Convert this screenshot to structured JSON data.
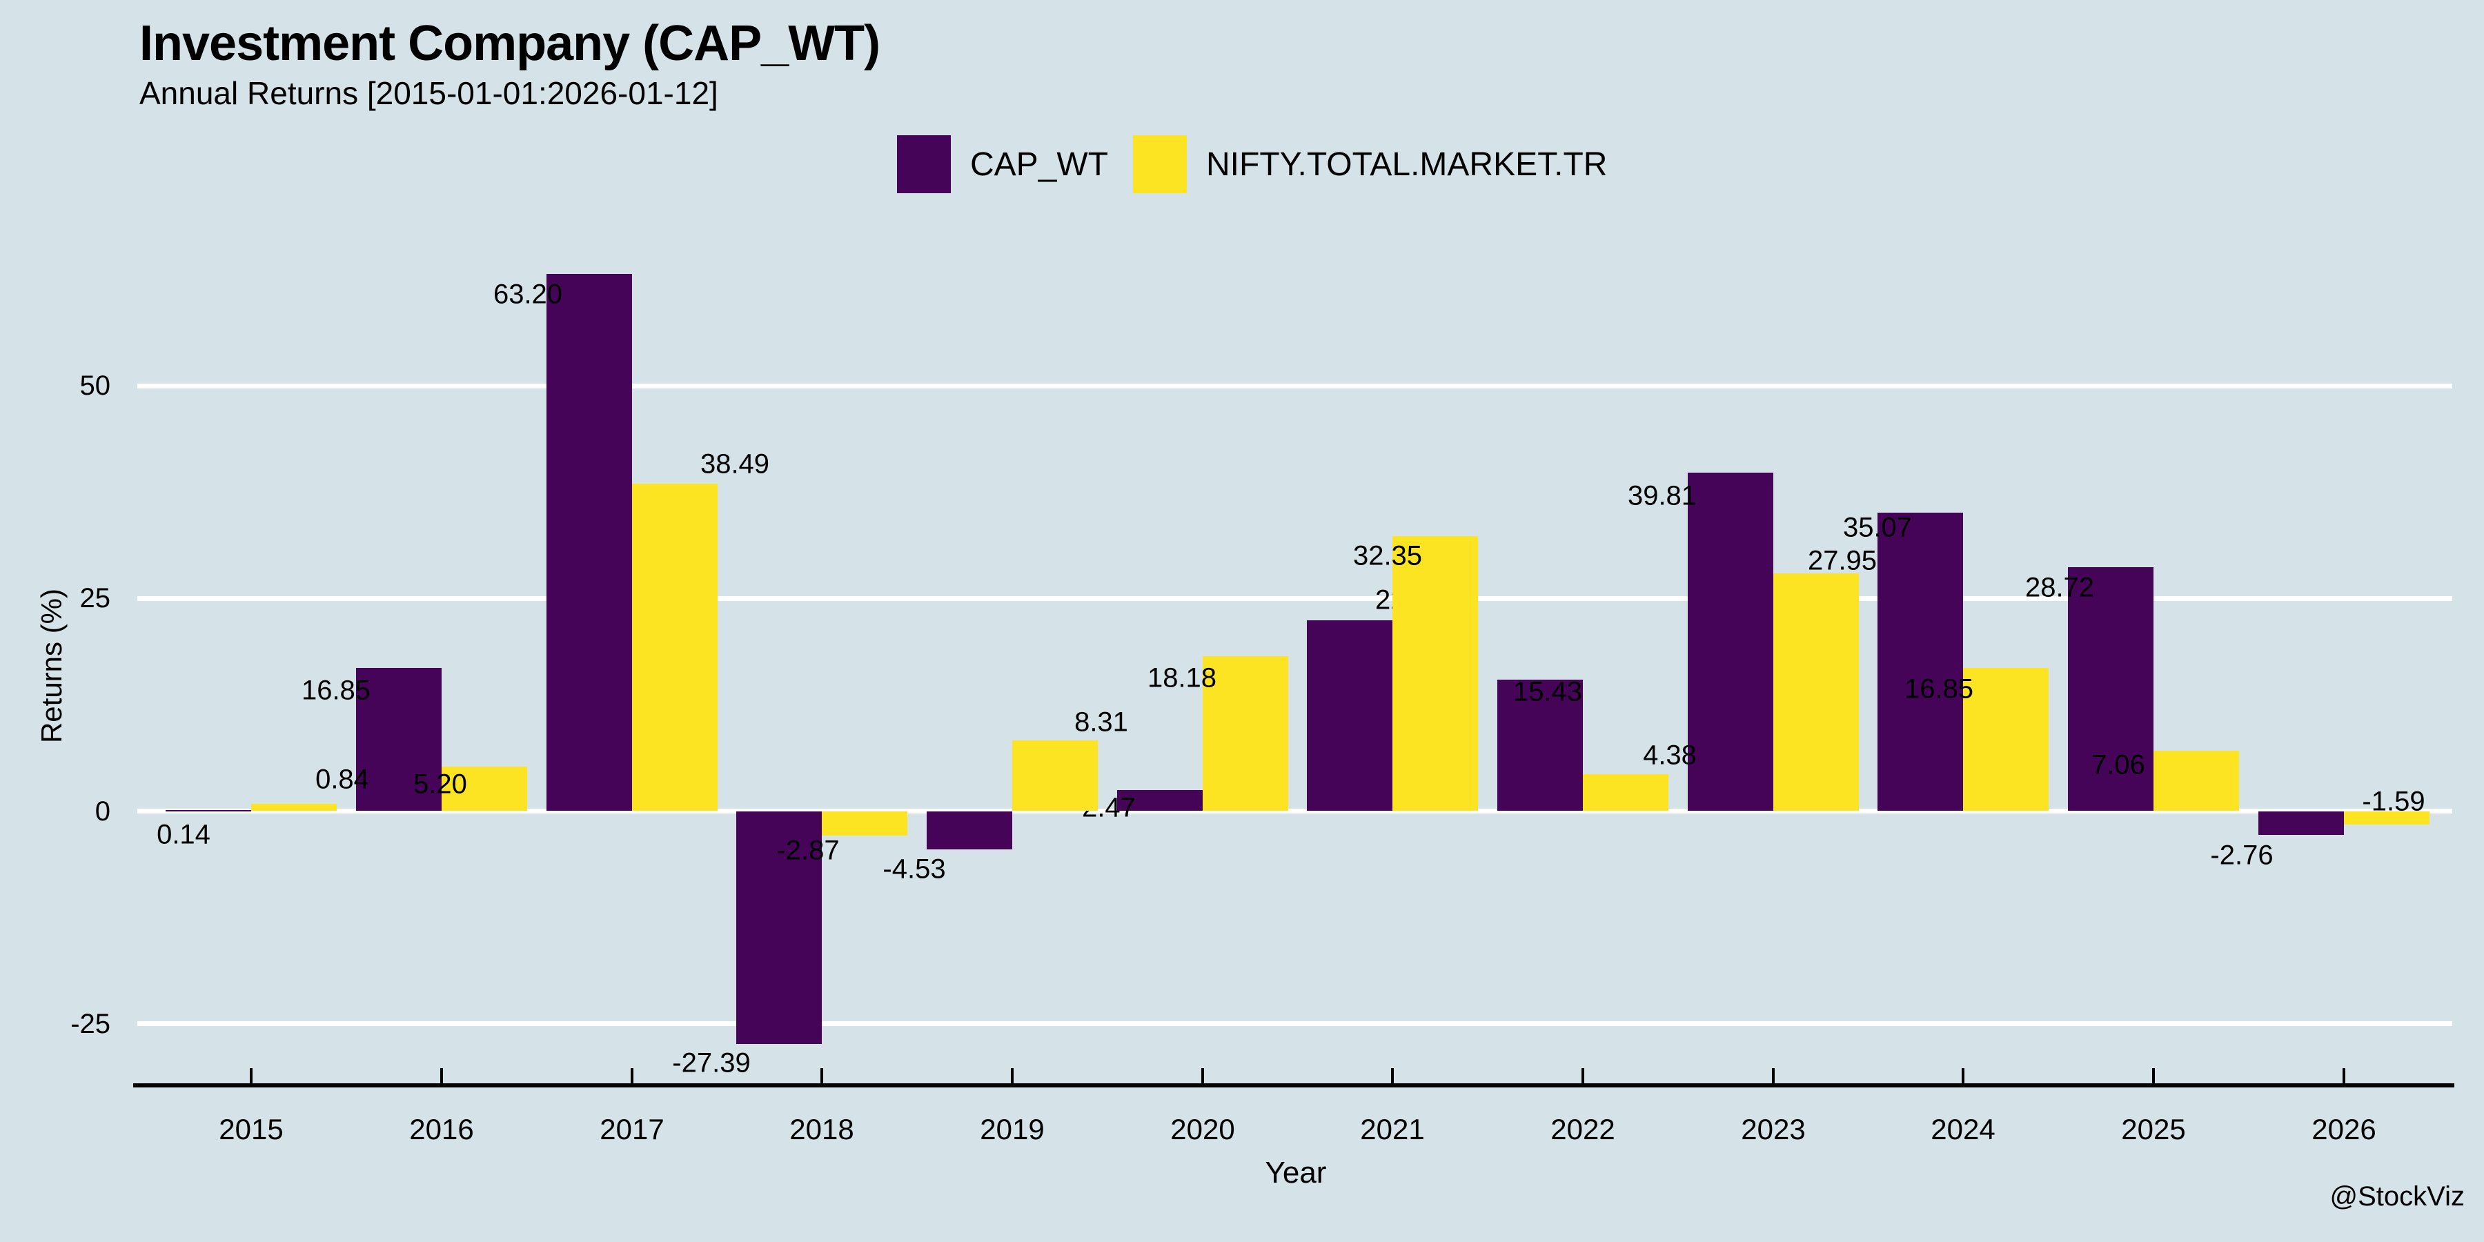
{
  "header": {
    "title": "Investment Company (CAP_WT)",
    "subtitle": "Annual Returns [2015-01-01:2026-01-12]"
  },
  "legend": {
    "items": [
      {
        "label": "CAP_WT",
        "color": "#450458"
      },
      {
        "label": "NIFTY.TOTAL.MARKET.TR",
        "color": "#fce422"
      }
    ]
  },
  "watermark": "@StockViz",
  "colors": {
    "background": "#d5e2e8",
    "gridline": "#ffffff",
    "axis": "#000000",
    "text": "#000000",
    "cap_wt_bar": "#450458",
    "nifty_bar": "#fce422"
  },
  "chart_data": {
    "type": "bar",
    "title": "Investment Company (CAP_WT)",
    "subtitle": "Annual Returns [2015-01-01:2026-01-12]",
    "categories": [
      "2015",
      "2016",
      "2017",
      "2018",
      "2019",
      "2020",
      "2021",
      "2022",
      "2023",
      "2024",
      "2025",
      "2026"
    ],
    "series": [
      {
        "name": "CAP_WT",
        "color": "#450458",
        "values": [
          0.14,
          16.85,
          63.2,
          -27.39,
          -4.53,
          2.47,
          22.44,
          15.43,
          39.81,
          35.07,
          28.72,
          -2.76
        ]
      },
      {
        "name": "NIFTY.TOTAL.MARKET.TR",
        "color": "#fce422",
        "values": [
          0.84,
          5.2,
          38.49,
          -2.87,
          8.31,
          18.18,
          32.35,
          4.38,
          27.95,
          16.85,
          7.06,
          -1.59
        ]
      }
    ],
    "xlabel": "Year",
    "ylabel": "Returns (%)",
    "yticks": [
      50,
      25,
      0,
      -25
    ],
    "ylim": [
      -35,
      68
    ],
    "grid": "horizontal white lines",
    "legend_position": "top-center",
    "bar_value_labels": true
  }
}
